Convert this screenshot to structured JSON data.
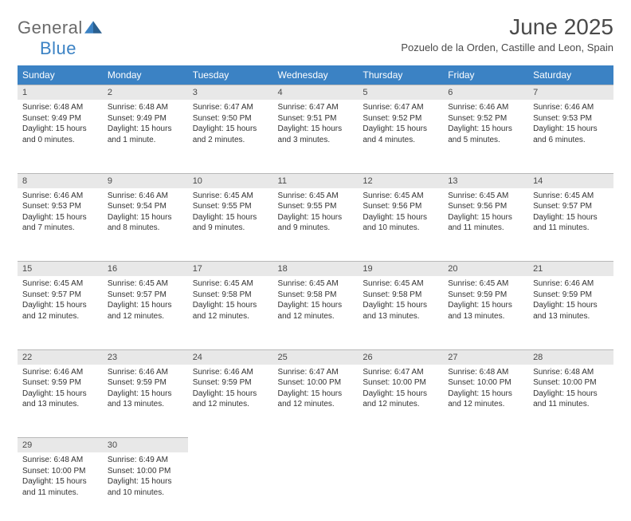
{
  "logo": {
    "text_main": "General",
    "text_blue": "Blue"
  },
  "title": "June 2025",
  "location": "Pozuelo de la Orden, Castille and Leon, Spain",
  "colors": {
    "header_bg": "#3b82c4",
    "header_text": "#ffffff",
    "daynum_bg": "#e8e8e8",
    "daynum_border": "#b8b8b8",
    "body_text": "#333333",
    "logo_gray": "#6a6a6a",
    "logo_blue": "#3b82c4"
  },
  "typography": {
    "title_fontsize": 28,
    "location_fontsize": 13,
    "header_fontsize": 12,
    "daynum_fontsize": 11,
    "cell_fontsize": 10
  },
  "weekdays": [
    "Sunday",
    "Monday",
    "Tuesday",
    "Wednesday",
    "Thursday",
    "Friday",
    "Saturday"
  ],
  "days": [
    {
      "n": 1,
      "sunrise": "6:48 AM",
      "sunset": "9:49 PM",
      "daylight": "15 hours and 0 minutes."
    },
    {
      "n": 2,
      "sunrise": "6:48 AM",
      "sunset": "9:49 PM",
      "daylight": "15 hours and 1 minute."
    },
    {
      "n": 3,
      "sunrise": "6:47 AM",
      "sunset": "9:50 PM",
      "daylight": "15 hours and 2 minutes."
    },
    {
      "n": 4,
      "sunrise": "6:47 AM",
      "sunset": "9:51 PM",
      "daylight": "15 hours and 3 minutes."
    },
    {
      "n": 5,
      "sunrise": "6:47 AM",
      "sunset": "9:52 PM",
      "daylight": "15 hours and 4 minutes."
    },
    {
      "n": 6,
      "sunrise": "6:46 AM",
      "sunset": "9:52 PM",
      "daylight": "15 hours and 5 minutes."
    },
    {
      "n": 7,
      "sunrise": "6:46 AM",
      "sunset": "9:53 PM",
      "daylight": "15 hours and 6 minutes."
    },
    {
      "n": 8,
      "sunrise": "6:46 AM",
      "sunset": "9:53 PM",
      "daylight": "15 hours and 7 minutes."
    },
    {
      "n": 9,
      "sunrise": "6:46 AM",
      "sunset": "9:54 PM",
      "daylight": "15 hours and 8 minutes."
    },
    {
      "n": 10,
      "sunrise": "6:45 AM",
      "sunset": "9:55 PM",
      "daylight": "15 hours and 9 minutes."
    },
    {
      "n": 11,
      "sunrise": "6:45 AM",
      "sunset": "9:55 PM",
      "daylight": "15 hours and 9 minutes."
    },
    {
      "n": 12,
      "sunrise": "6:45 AM",
      "sunset": "9:56 PM",
      "daylight": "15 hours and 10 minutes."
    },
    {
      "n": 13,
      "sunrise": "6:45 AM",
      "sunset": "9:56 PM",
      "daylight": "15 hours and 11 minutes."
    },
    {
      "n": 14,
      "sunrise": "6:45 AM",
      "sunset": "9:57 PM",
      "daylight": "15 hours and 11 minutes."
    },
    {
      "n": 15,
      "sunrise": "6:45 AM",
      "sunset": "9:57 PM",
      "daylight": "15 hours and 12 minutes."
    },
    {
      "n": 16,
      "sunrise": "6:45 AM",
      "sunset": "9:57 PM",
      "daylight": "15 hours and 12 minutes."
    },
    {
      "n": 17,
      "sunrise": "6:45 AM",
      "sunset": "9:58 PM",
      "daylight": "15 hours and 12 minutes."
    },
    {
      "n": 18,
      "sunrise": "6:45 AM",
      "sunset": "9:58 PM",
      "daylight": "15 hours and 12 minutes."
    },
    {
      "n": 19,
      "sunrise": "6:45 AM",
      "sunset": "9:58 PM",
      "daylight": "15 hours and 13 minutes."
    },
    {
      "n": 20,
      "sunrise": "6:45 AM",
      "sunset": "9:59 PM",
      "daylight": "15 hours and 13 minutes."
    },
    {
      "n": 21,
      "sunrise": "6:46 AM",
      "sunset": "9:59 PM",
      "daylight": "15 hours and 13 minutes."
    },
    {
      "n": 22,
      "sunrise": "6:46 AM",
      "sunset": "9:59 PM",
      "daylight": "15 hours and 13 minutes."
    },
    {
      "n": 23,
      "sunrise": "6:46 AM",
      "sunset": "9:59 PM",
      "daylight": "15 hours and 13 minutes."
    },
    {
      "n": 24,
      "sunrise": "6:46 AM",
      "sunset": "9:59 PM",
      "daylight": "15 hours and 12 minutes."
    },
    {
      "n": 25,
      "sunrise": "6:47 AM",
      "sunset": "10:00 PM",
      "daylight": "15 hours and 12 minutes."
    },
    {
      "n": 26,
      "sunrise": "6:47 AM",
      "sunset": "10:00 PM",
      "daylight": "15 hours and 12 minutes."
    },
    {
      "n": 27,
      "sunrise": "6:48 AM",
      "sunset": "10:00 PM",
      "daylight": "15 hours and 12 minutes."
    },
    {
      "n": 28,
      "sunrise": "6:48 AM",
      "sunset": "10:00 PM",
      "daylight": "15 hours and 11 minutes."
    },
    {
      "n": 29,
      "sunrise": "6:48 AM",
      "sunset": "10:00 PM",
      "daylight": "15 hours and 11 minutes."
    },
    {
      "n": 30,
      "sunrise": "6:49 AM",
      "sunset": "10:00 PM",
      "daylight": "15 hours and 10 minutes."
    }
  ],
  "labels": {
    "sunrise": "Sunrise:",
    "sunset": "Sunset:",
    "daylight": "Daylight:"
  }
}
